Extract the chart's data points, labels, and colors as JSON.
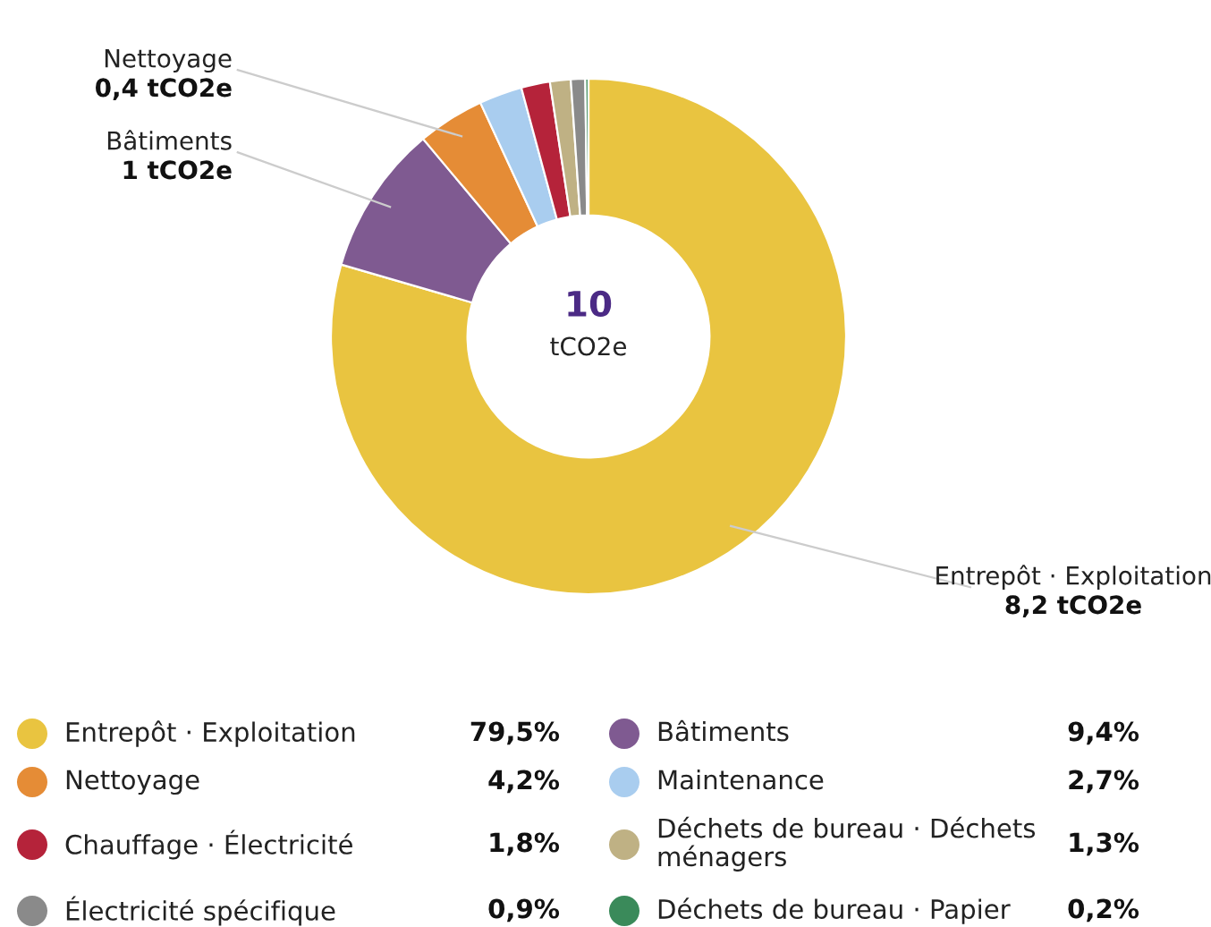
{
  "chart_data": {
    "type": "donut",
    "categories": [
      "Entrepôt · Exploitation",
      "Bâtiments",
      "Nettoyage",
      "Maintenance",
      "Chauffage · Électricité",
      "Déchets de bureau · Déchets ménagers",
      "Électricité spécifique",
      "Déchets de bureau · Papier"
    ],
    "values": [
      79.5,
      9.4,
      4.2,
      2.7,
      1.8,
      1.3,
      0.9,
      0.2
    ],
    "colors": [
      "#e9c440",
      "#7f5a91",
      "#e58c36",
      "#a9cdef",
      "#b5233a",
      "#bfb184",
      "#8a8a8a",
      "#3a8a5a"
    ],
    "value_labels": [
      "79,5%",
      "9,4%",
      "4,2%",
      "2,7%",
      "1,8%",
      "1,3%",
      "0,9%",
      "0,2%"
    ],
    "annotations": [
      "10",
      "tCO2e",
      "Entrepôt · Exploitation\n8,2 tCO2e",
      "Bâtiments\n1 tCO2e",
      "Nettoyage\n0,4 tCO2e"
    ],
    "legend": "bottom"
  }
}
